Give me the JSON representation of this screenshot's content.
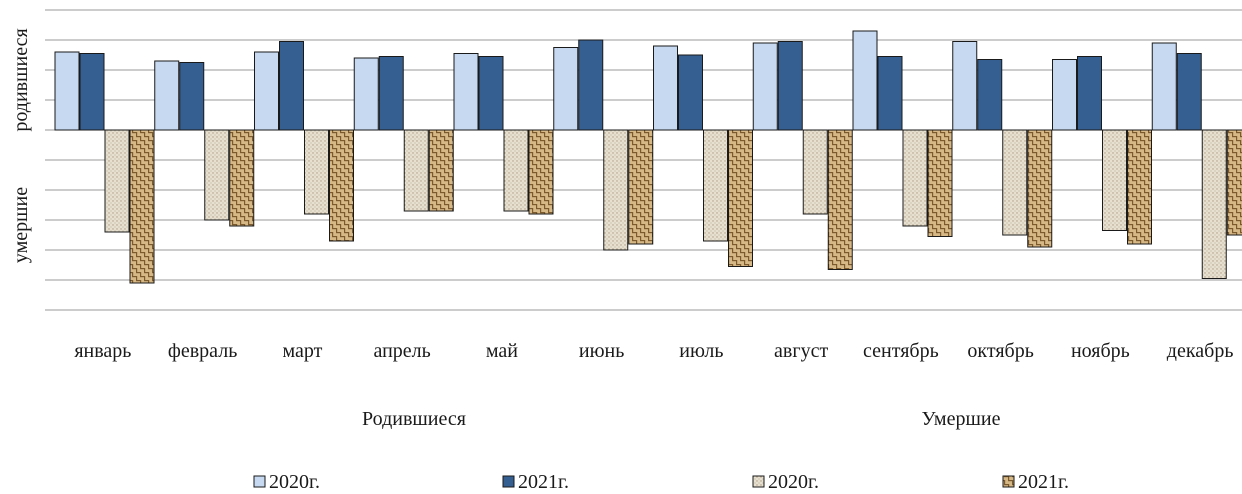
{
  "chart_data": {
    "type": "bar",
    "categories": [
      "январь",
      "февраль",
      "март",
      "апрель",
      "май",
      "июнь",
      "июль",
      "август",
      "сентябрь",
      "октябрь",
      "ноябрь",
      "декабрь"
    ],
    "y_axis_title_top": "родившиеся",
    "y_axis_title_bottom": "умершие",
    "group_titles": [
      "Родившиеся",
      "Умершие"
    ],
    "ylim": [
      -6,
      4
    ],
    "grid": true,
    "legend_position": "bottom",
    "series": [
      {
        "name": "2020г.",
        "group": "Родившиеся",
        "color": "#c6d9f1",
        "pattern": "solid",
        "values": [
          2.6,
          2.3,
          2.6,
          2.4,
          2.55,
          2.75,
          2.8,
          2.9,
          3.3,
          2.95,
          2.35,
          2.9
        ]
      },
      {
        "name": "2021г.",
        "group": "Родившиеся",
        "color": "#365f91",
        "pattern": "solid",
        "values": [
          2.55,
          2.25,
          2.95,
          2.45,
          2.45,
          3.0,
          2.5,
          2.95,
          2.45,
          2.35,
          2.45,
          2.55
        ]
      },
      {
        "name": "2020г.",
        "group": "Умершие",
        "color": "#ddd5c3",
        "pattern": "dots",
        "values": [
          -3.4,
          -3.0,
          -2.8,
          -2.7,
          -2.7,
          -4.0,
          -3.7,
          -2.8,
          -3.2,
          -3.5,
          -3.35,
          -4.95
        ]
      },
      {
        "name": "2021г.",
        "group": "Умершие",
        "color": "#c9a36a",
        "pattern": "weave",
        "values": [
          -5.1,
          -3.2,
          -3.7,
          -2.7,
          -2.8,
          -3.8,
          -4.55,
          -4.65,
          -3.55,
          -3.9,
          -3.8,
          -3.5
        ]
      }
    ]
  }
}
